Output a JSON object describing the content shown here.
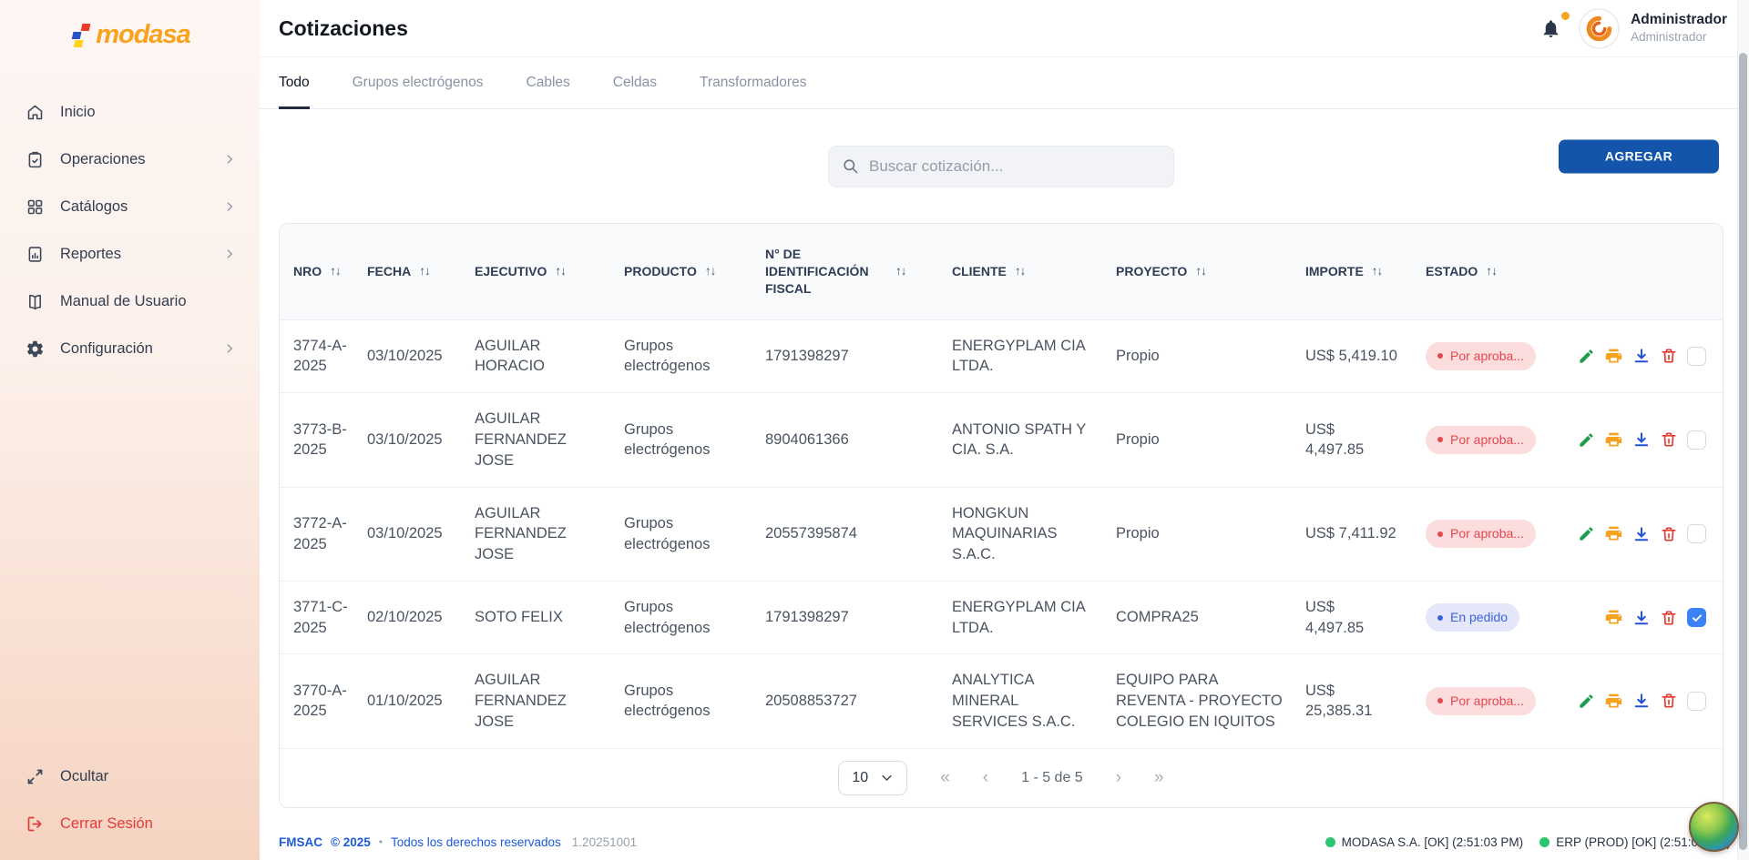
{
  "brand": {
    "name": "modasa"
  },
  "sidebar": {
    "items": [
      {
        "label": "Inicio",
        "icon": "home",
        "has_submenu": false
      },
      {
        "label": "Operaciones",
        "icon": "clipboard",
        "has_submenu": true
      },
      {
        "label": "Catálogos",
        "icon": "grid",
        "has_submenu": true
      },
      {
        "label": "Reportes",
        "icon": "report",
        "has_submenu": true
      },
      {
        "label": "Manual de Usuario",
        "icon": "book",
        "has_submenu": false
      },
      {
        "label": "Configuración",
        "icon": "gear",
        "has_submenu": true
      }
    ],
    "collapse_label": "Ocultar",
    "logout_label": "Cerrar Sesión"
  },
  "header": {
    "title": "Cotizaciones",
    "user": {
      "name": "Administrador",
      "role": "Administrador"
    }
  },
  "tabs": [
    "Todo",
    "Grupos electrógenos",
    "Cables",
    "Celdas",
    "Transformadores"
  ],
  "active_tab_index": 0,
  "toolbar": {
    "search_placeholder": "Buscar cotización...",
    "add_label": "AGREGAR"
  },
  "table": {
    "columns": [
      "NRO",
      "FECHA",
      "EJECUTIVO",
      "PRODUCTO",
      "N° DE IDENTIFICACIÓN FISCAL",
      "CLIENTE",
      "PROYECTO",
      "IMPORTE",
      "ESTADO"
    ],
    "rows": [
      {
        "nro": "3774-A-\n2025",
        "fecha": "03/10/2025",
        "ejecutivo": "AGUILAR\nHORACIO",
        "producto": "Grupos\nelectrógenos",
        "nif": "1791398297",
        "cliente": "ENERGYPLAM CIA\nLTDA.",
        "proyecto": "Propio",
        "importe": "US$ 5,419.10",
        "estado": {
          "label": "Por aproba...",
          "type": "pending"
        },
        "actions": [
          "edit",
          "print",
          "download",
          "delete"
        ],
        "selected": false
      },
      {
        "nro": "3773-B-\n2025",
        "fecha": "03/10/2025",
        "ejecutivo": "AGUILAR\nFERNANDEZ\nJOSE",
        "producto": "Grupos\nelectrógenos",
        "nif": "8904061366",
        "cliente": "ANTONIO SPATH Y\nCIA. S.A.",
        "proyecto": "Propio",
        "importe": "US$\n4,497.85",
        "estado": {
          "label": "Por aproba...",
          "type": "pending"
        },
        "actions": [
          "edit",
          "print",
          "download",
          "delete"
        ],
        "selected": false
      },
      {
        "nro": "3772-A-\n2025",
        "fecha": "03/10/2025",
        "ejecutivo": "AGUILAR\nFERNANDEZ\nJOSE",
        "producto": "Grupos\nelectrógenos",
        "nif": "20557395874",
        "cliente": "HONGKUN\nMAQUINARIAS\nS.A.C.",
        "proyecto": "Propio",
        "importe": "US$ 7,411.92",
        "estado": {
          "label": "Por aproba...",
          "type": "pending"
        },
        "actions": [
          "edit",
          "print",
          "download",
          "delete"
        ],
        "selected": false
      },
      {
        "nro": "3771-C-\n2025",
        "fecha": "02/10/2025",
        "ejecutivo": "SOTO FELIX",
        "producto": "Grupos\nelectrógenos",
        "nif": "1791398297",
        "cliente": "ENERGYPLAM CIA\nLTDA.",
        "proyecto": "COMPRA25",
        "importe": "US$\n4,497.85",
        "estado": {
          "label": "En pedido",
          "type": "ordered"
        },
        "actions": [
          "print",
          "download",
          "delete"
        ],
        "selected": true
      },
      {
        "nro": "3770-A-\n2025",
        "fecha": "01/10/2025",
        "ejecutivo": "AGUILAR\nFERNANDEZ\nJOSE",
        "producto": "Grupos\nelectrógenos",
        "nif": "20508853727",
        "cliente": "ANALYTICA\nMINERAL\nSERVICES S.A.C.",
        "proyecto": "EQUIPO PARA\nREVENTA - PROYECTO\nCOLEGIO EN IQUITOS",
        "importe": "US$\n25,385.31",
        "estado": {
          "label": "Por aproba...",
          "type": "pending"
        },
        "actions": [
          "edit",
          "print",
          "download",
          "delete"
        ],
        "selected": false
      }
    ]
  },
  "pagination": {
    "page_size": "10",
    "range_label": "1 - 5 de 5",
    "first_label": "«",
    "prev_label": "‹",
    "next_label": "›",
    "last_label": "»"
  },
  "footer": {
    "company": "FMSAC",
    "copyright": "© 2025",
    "rights": "Todos los derechos reservados",
    "version": "1.20251001",
    "statuses": [
      {
        "label": "MODASA S.A. [OK] (2:51:03 PM)"
      },
      {
        "label": "ERP (PROD) [OK] (2:51:03 PM)"
      }
    ]
  },
  "colors": {
    "accent_blue": "#1355ab",
    "brand_orange": "#f9a21b",
    "badge_pending_text": "#e4474d",
    "badge_pending_bg": "#fbdddd",
    "badge_ordered_text": "#3b63d8",
    "badge_ordered_bg": "#e4e6f9",
    "status_ok_dot": "#2bc46f",
    "logout_red": "#e23b3b",
    "checkbox_checked": "#3b82f6"
  }
}
